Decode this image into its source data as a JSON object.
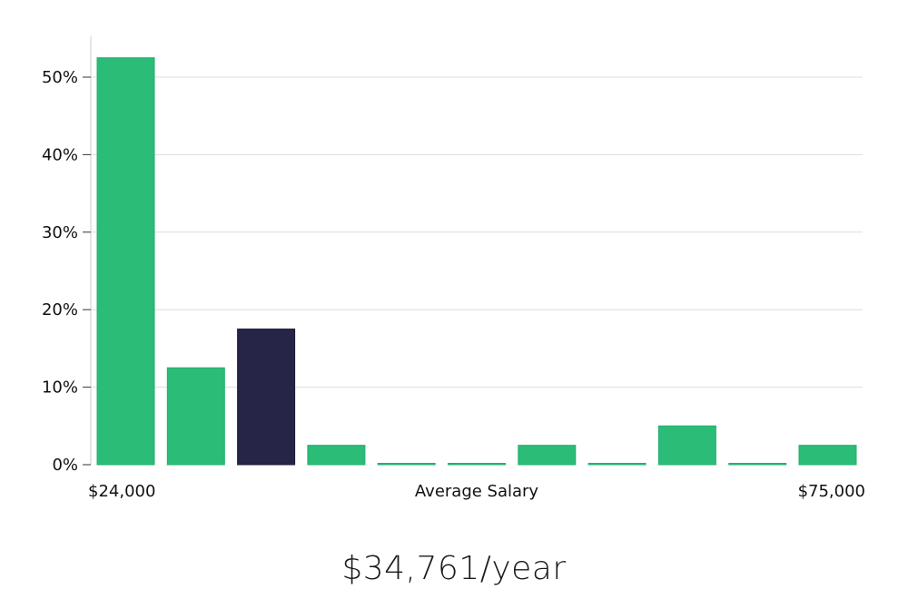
{
  "chart_data": {
    "type": "bar",
    "xlabel": "Average Salary",
    "x_range_labels": {
      "min": "$24,000",
      "max": "$75,000"
    },
    "y_ticks": [
      "0%",
      "10%",
      "20%",
      "30%",
      "40%",
      "50%"
    ],
    "ylim": [
      0,
      55
    ],
    "grid": true,
    "values": [
      52.5,
      12.5,
      17.5,
      2.5,
      0,
      0,
      2.5,
      0,
      5,
      0,
      2.5
    ],
    "highlight_index": 2,
    "colors": {
      "bar": "#2bbd77",
      "highlight": "#262547",
      "grid": "#dddddd",
      "axis": "#cccccc"
    }
  },
  "summary": {
    "salary_text": "$34,761/year"
  }
}
